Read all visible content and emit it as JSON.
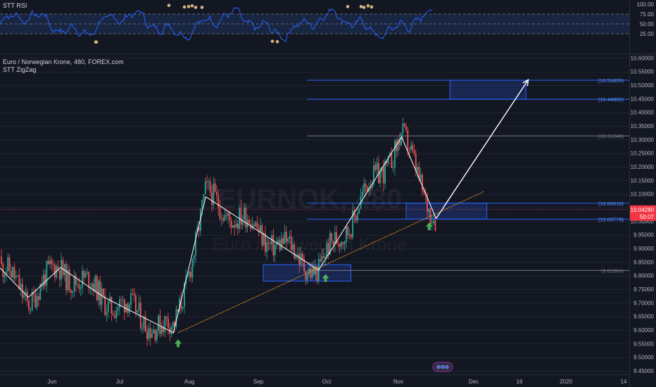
{
  "chart_data": {
    "type": "line",
    "title": "Euro / Norwegian Krone, 480, FOREX.com",
    "indicator": "STT ZigZag",
    "watermark_symbol": "EURNOK, 480",
    "watermark_name": "Euro / Norwegian Krone",
    "x_tick_labels": [
      "Jun",
      "Jul",
      "Aug",
      "Sep",
      "Oct",
      "Nov",
      "Dec",
      "16",
      "2020",
      "14"
    ],
    "y_ticks": [
      "10.60000",
      "10.55000",
      "10.50000",
      "10.45000",
      "10.40000",
      "10.35000",
      "10.30000",
      "10.25000",
      "10.20000",
      "10.15000",
      "10.10000",
      "10.05000",
      "10.00000",
      "9.95000",
      "9.90000",
      "9.85000",
      "9.80000",
      "9.75000",
      "9.70000",
      "9.65000",
      "9.60000",
      "9.55000",
      "9.50000",
      "9.45000"
    ],
    "ylim": [
      9.45,
      10.61
    ],
    "current_price": "10.04280",
    "countdown": "50:07",
    "zigzag_points": [
      {
        "x": "2019-05-03",
        "y": 9.87
      },
      {
        "x": "2019-05-20",
        "y": 9.72
      },
      {
        "x": "2019-06-03",
        "y": 9.83
      },
      {
        "x": "2019-06-22",
        "y": 9.72
      },
      {
        "x": "2019-07-22",
        "y": 9.59
      },
      {
        "x": "2019-08-05",
        "y": 10.09
      },
      {
        "x": "2019-09-23",
        "y": 9.82
      },
      {
        "x": "2019-10-29",
        "y": 10.31
      },
      {
        "x": "2019-11-13",
        "y": 10.01
      }
    ],
    "projection_arrow": {
      "from": {
        "x": "2019-11-13",
        "y": 10.01
      },
      "to": {
        "x": "2019-12-23",
        "y": 10.52
      }
    },
    "trendline": {
      "from": {
        "x": "2019-07-24",
        "y": 9.59
      },
      "to": {
        "x": "2019-12-04",
        "y": 10.11
      }
    },
    "levels": [
      {
        "label": "(10.51826)",
        "value": 10.51826,
        "color": "#2962ff"
      },
      {
        "label": "(10.44802)",
        "value": 10.44802,
        "color": "#2962ff"
      },
      {
        "label": "(10.31348)",
        "value": 10.31348,
        "color": "#787b86"
      },
      {
        "label": "(10.06616)",
        "value": 10.06616,
        "color": "#2962ff"
      },
      {
        "label": "(10.00779)",
        "value": 10.00779,
        "color": "#2962ff"
      },
      {
        "label": "(9.81884)",
        "value": 9.81884,
        "color": "#787b86"
      }
    ],
    "zones": [
      {
        "name": "target-zone",
        "from": "2019-11-19",
        "to": "2019-12-22",
        "y1": 10.44802,
        "y2": 10.51826
      },
      {
        "name": "current-demand-zone",
        "from": "2019-10-31",
        "to": "2019-12-05",
        "y1": 10.00779,
        "y2": 10.06616
      },
      {
        "name": "september-demand-zone",
        "from": "2019-08-30",
        "to": "2019-10-07",
        "y1": 9.78,
        "y2": 9.84
      }
    ],
    "buy_signals": [
      {
        "x": "2019-07-24",
        "y": 9.55
      },
      {
        "x": "2019-09-26",
        "y": 9.79
      },
      {
        "x": "2019-11-10",
        "y": 9.98
      }
    ],
    "rsi": {
      "title": "STT RSI",
      "tick_labels": [
        "100.00",
        "75.00",
        "50.00",
        "25.00"
      ],
      "range": [
        0,
        100
      ],
      "levels": [
        75,
        50,
        25
      ]
    },
    "colors": {
      "background": "#131722",
      "up": "#26a69a",
      "down": "#ef5350",
      "zigzag": "#ffffff",
      "trend": "#f7a21b",
      "zone": "#2962ff",
      "rsi": "#2962ff",
      "price_line": "#f23645"
    }
  }
}
